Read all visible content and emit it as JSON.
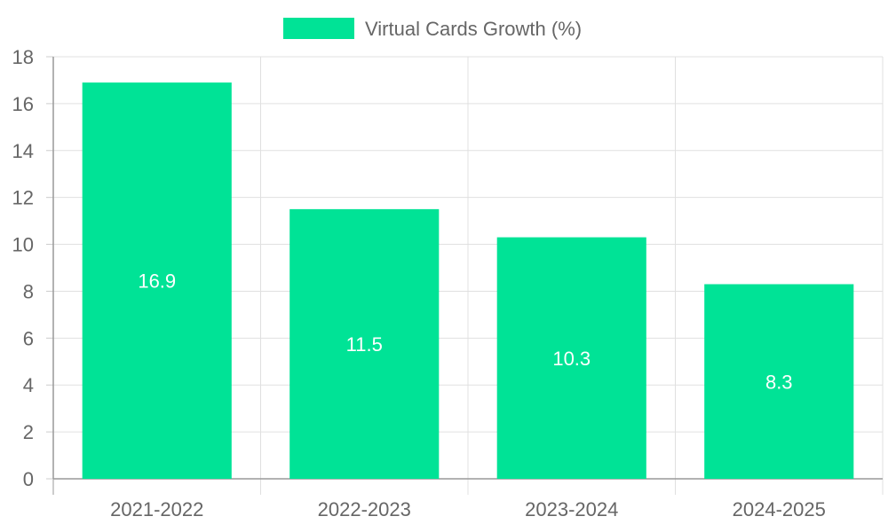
{
  "chart_data": {
    "type": "bar",
    "categories": [
      "2021-2022",
      "2022-2023",
      "2023-2024",
      "2024-2025"
    ],
    "series": [
      {
        "name": "Virtual Cards Growth (%)",
        "values": [
          16.9,
          11.5,
          10.3,
          8.3
        ],
        "color": "#00E396"
      }
    ],
    "ylim": [
      0,
      18
    ],
    "yticks": [
      0,
      2,
      4,
      6,
      8,
      10,
      12,
      14,
      16,
      18
    ],
    "grid": true,
    "legend": "top-center",
    "data_labels": [
      "16.9",
      "11.5",
      "10.3",
      "8.3"
    ]
  }
}
